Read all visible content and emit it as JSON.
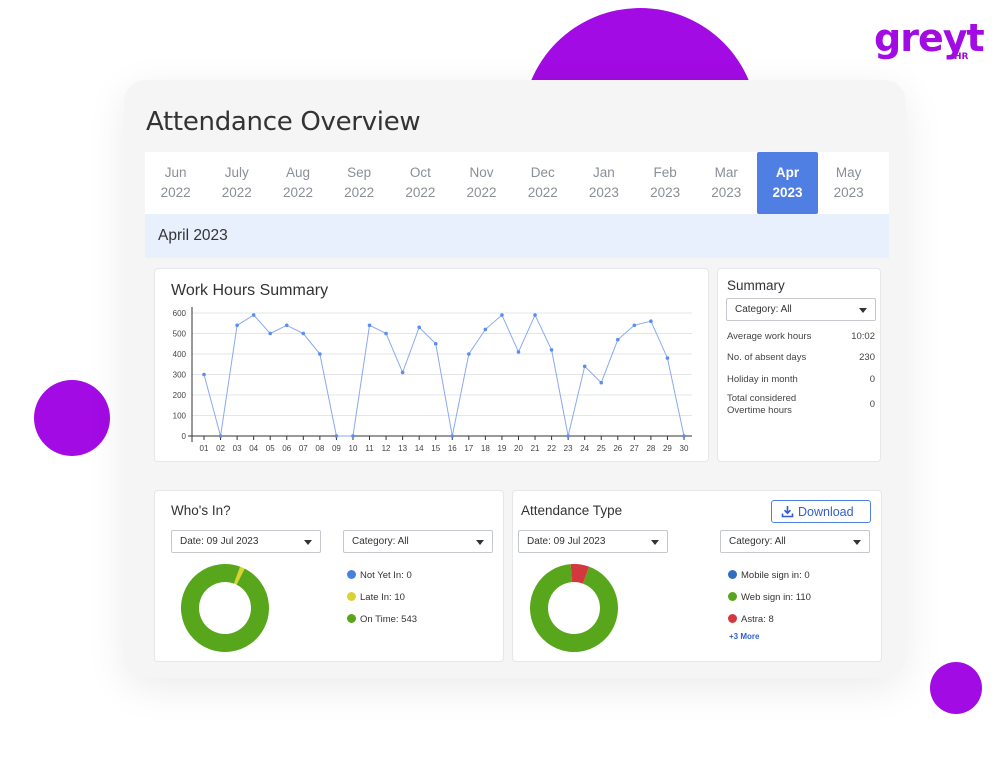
{
  "brand": {
    "logo_text": "greyt",
    "logo_sub": "HR",
    "accent": "#a20be3"
  },
  "page_title": "Attendance Overview",
  "months": [
    {
      "m": "Jun",
      "y": "2022"
    },
    {
      "m": "July",
      "y": "2022"
    },
    {
      "m": "Aug",
      "y": "2022"
    },
    {
      "m": "Sep",
      "y": "2022"
    },
    {
      "m": "Oct",
      "y": "2022"
    },
    {
      "m": "Nov",
      "y": "2022"
    },
    {
      "m": "Dec",
      "y": "2022"
    },
    {
      "m": "Jan",
      "y": "2023"
    },
    {
      "m": "Feb",
      "y": "2023"
    },
    {
      "m": "Mar",
      "y": "2023"
    },
    {
      "m": "Apr",
      "y": "2023",
      "active": true
    },
    {
      "m": "May",
      "y": "2023"
    }
  ],
  "selected_month_label": "April 2023",
  "work_hours": {
    "title": "Work Hours Summary",
    "chart_data": {
      "type": "line",
      "x": [
        "01",
        "02",
        "03",
        "04",
        "05",
        "06",
        "07",
        "08",
        "09",
        "10",
        "11",
        "12",
        "13",
        "14",
        "15",
        "16",
        "17",
        "18",
        "19",
        "20",
        "21",
        "22",
        "23",
        "24",
        "25",
        "26",
        "27",
        "28",
        "29",
        "30"
      ],
      "series": [
        {
          "values": [
            300,
            0,
            540,
            590,
            500,
            540,
            500,
            400,
            0,
            0,
            540,
            500,
            310,
            530,
            450,
            0,
            400,
            520,
            590,
            410,
            590,
            420,
            0,
            340,
            260,
            470,
            540,
            560,
            380,
            0
          ]
        }
      ],
      "yticks": [
        0,
        100,
        200,
        300,
        400,
        500,
        600
      ],
      "ylim": [
        0,
        600
      ],
      "grid": true,
      "color": "#5b8def"
    }
  },
  "summary": {
    "title": "Summary",
    "category_select": "Category: All",
    "rows": [
      {
        "label": "Average work hours",
        "value": "10:02"
      },
      {
        "label": "No. of absent days",
        "value": "230"
      },
      {
        "label": "Holiday in month",
        "value": "0"
      },
      {
        "label": "Total considered Overtime hours",
        "value": "0"
      }
    ]
  },
  "whos_in": {
    "title": "Who's In?",
    "date_select": "Date: 09 Jul 2023",
    "category_select": "Category: All",
    "legend": [
      {
        "label": "Not Yet In: 0",
        "value": 0,
        "color": "#4a7fe0"
      },
      {
        "label": "Late In: 10",
        "value": 10,
        "color": "#d8d32e"
      },
      {
        "label": "On Time: 543",
        "value": 543,
        "color": "#57a61c"
      }
    ]
  },
  "attendance_type": {
    "title": "Attendance Type",
    "download_label": "Download",
    "date_select": "Date: 09 Jul 2023",
    "category_select": "Category: All",
    "legend": [
      {
        "label": "Mobile sign in: 0",
        "value": 0,
        "color": "#2f6fbf"
      },
      {
        "label": "Web sign in: 110",
        "value": 110,
        "color": "#57a61c"
      },
      {
        "label": "Astra: 8",
        "value": 8,
        "color": "#d4383f"
      }
    ],
    "more_label": "+3 More"
  }
}
